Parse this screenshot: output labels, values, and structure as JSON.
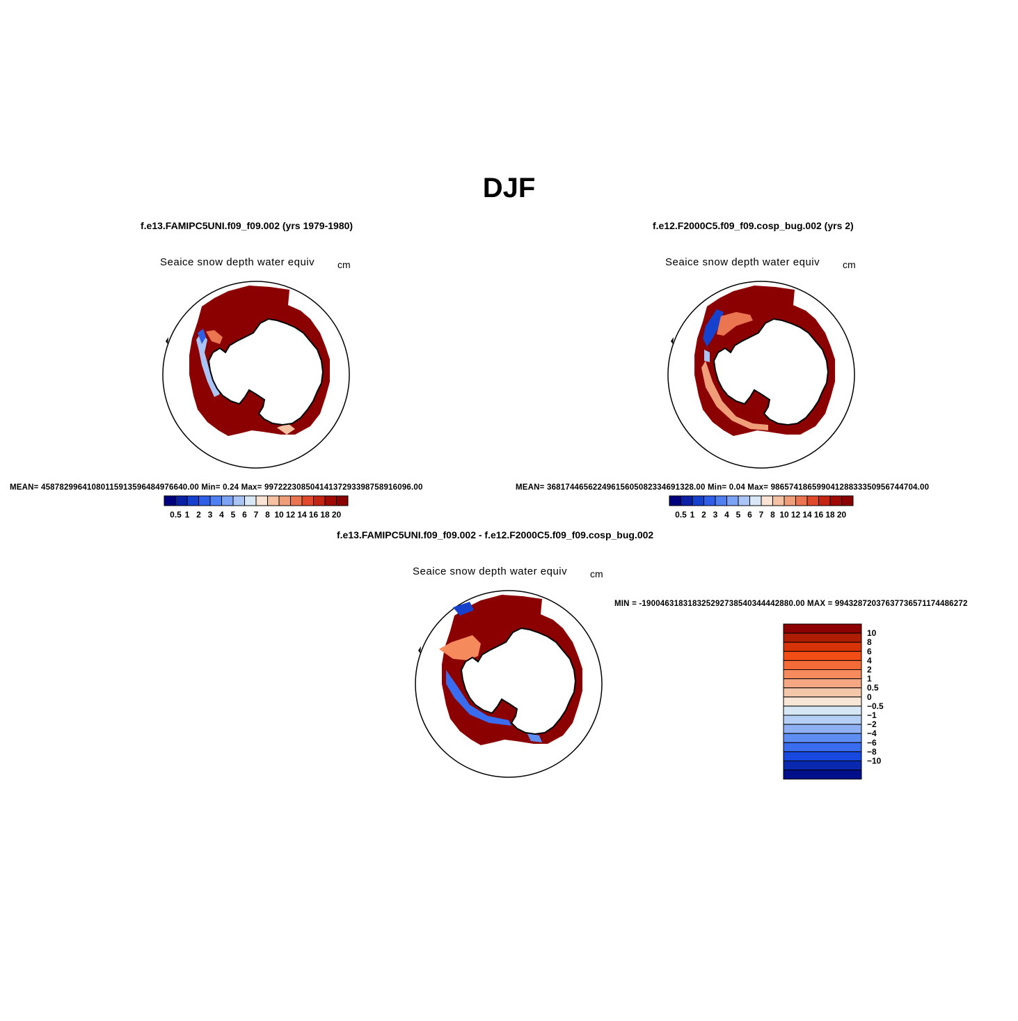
{
  "title": "DJF",
  "panels": [
    {
      "case": "f.e13.FAMIPC5UNI.f09_f09.002 (yrs 1979-1980)",
      "variable": "Seaice snow depth water equiv",
      "units": "cm",
      "stats": "MEAN= 45878299641080115913596484976640.00   Min=    0.24   Max=  99722230850414137293398758916096.00"
    },
    {
      "case": "f.e12.F2000C5.f09_f09.cosp_bug.002 (yrs 2)",
      "variable": "Seaice snow depth water equiv",
      "units": "cm",
      "stats": "MEAN= 36817446562249615605082334691328.00   Min=    0.04   Max=  98657418659904128833350956744704.00"
    },
    {
      "case": "f.e13.FAMIPC5UNI.f09_f09.002 - f.e12.F2000C5.f09_f09.cosp_bug.002",
      "variable": "Seaice snow depth water equiv",
      "units": "cm",
      "stats": "MIN = -190046318318325292738540344442880.00  MAX = 99432872037637736571174486272"
    }
  ],
  "colorbar_abs": {
    "labels": [
      "0.5",
      "1",
      "2",
      "3",
      "4",
      "5",
      "6",
      "7",
      "8",
      "10",
      "12",
      "14",
      "16",
      "18",
      "20"
    ],
    "colors": [
      "#00007f",
      "#0a21a6",
      "#1641cc",
      "#2f5fe6",
      "#4f80f2",
      "#7ba2f5",
      "#aac5f5",
      "#d9e8f7",
      "#fae3d4",
      "#f5c1a3",
      "#f09e79",
      "#eb7550",
      "#e04a2b",
      "#c42513",
      "#a00a05",
      "#8b0000"
    ]
  },
  "colorbar_diff": {
    "labels": [
      "10",
      "8",
      "6",
      "4",
      "2",
      "1",
      "0.5",
      "0",
      "−0.5",
      "−1",
      "−2",
      "−4",
      "−6",
      "−8",
      "−10"
    ],
    "colors": [
      "#8b0000",
      "#b01d05",
      "#d63308",
      "#f24d14",
      "#f56b37",
      "#f58a5d",
      "#f5a783",
      "#f5c7aa",
      "#f7e6d6",
      "#d6e6f5",
      "#b5cef5",
      "#8fb0f5",
      "#5f8ef2",
      "#3a6cf0",
      "#1748e0",
      "#0a28b0",
      "#00108a"
    ]
  },
  "colors": {
    "ice": "#8b0000",
    "coast": "#000000",
    "frame": "#000000"
  }
}
